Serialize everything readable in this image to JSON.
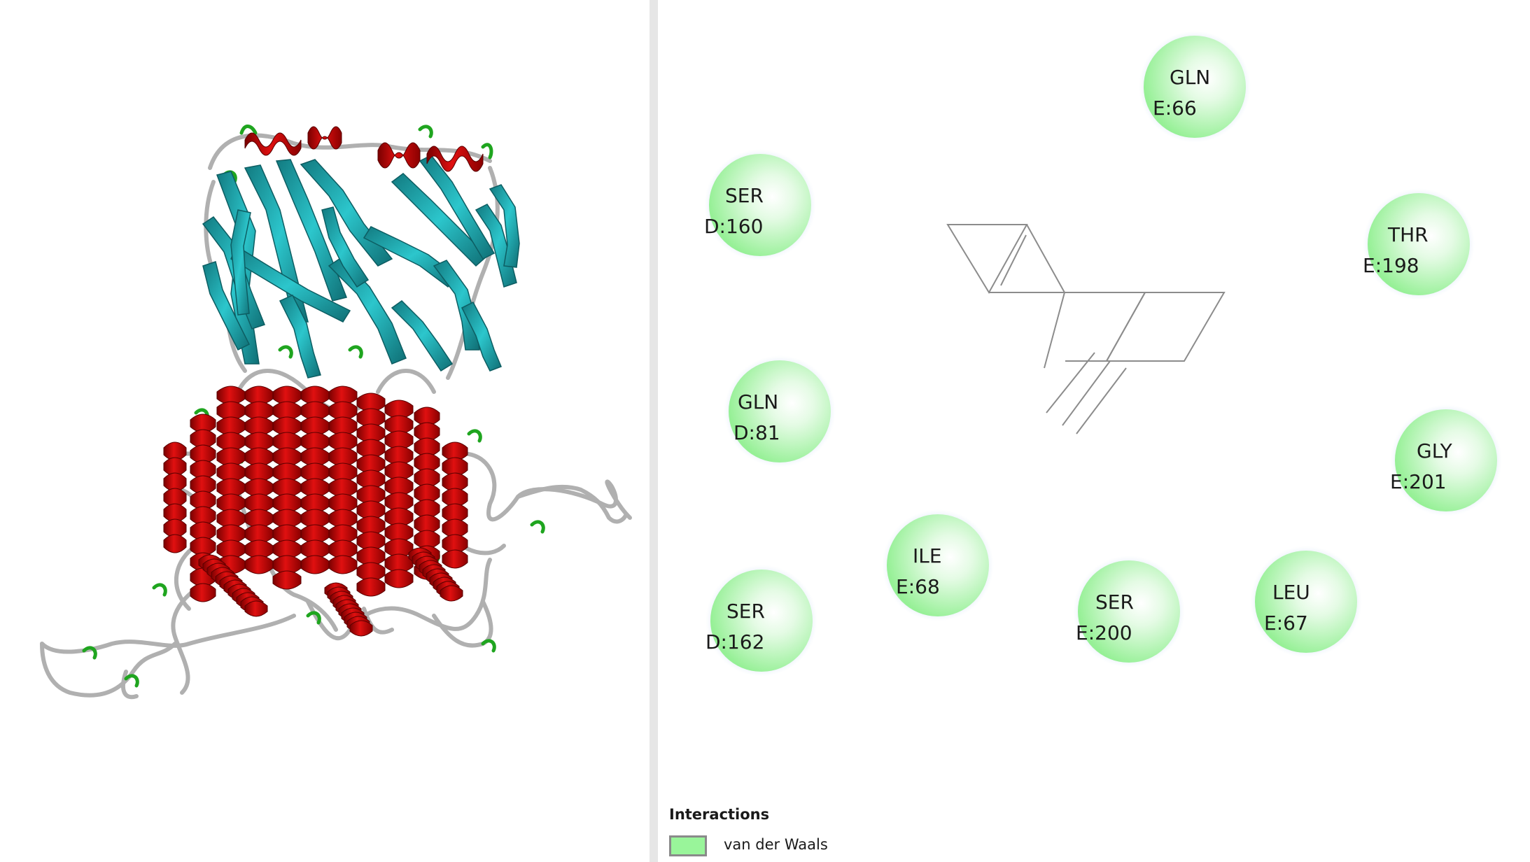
{
  "colors": {
    "helix": "#c00000",
    "sheet": "#23b8c0",
    "coil": "#a8a8a8",
    "turn": "#1fa51f",
    "vdw_fill": "#99f59a",
    "vdw_border": "#8a8a8a",
    "ligand_line": "#8c8c8c"
  },
  "residues": [
    {
      "name": "GLN",
      "id": "E:66"
    },
    {
      "name": "SER",
      "id": "D:160"
    },
    {
      "name": "THR",
      "id": "E:198"
    },
    {
      "name": "GLN",
      "id": "D:81"
    },
    {
      "name": "GLY",
      "id": "E:201"
    },
    {
      "name": "ILE",
      "id": "E:68"
    },
    {
      "name": "SER",
      "id": "D:162"
    },
    {
      "name": "SER",
      "id": "E:200"
    },
    {
      "name": "LEU",
      "id": "E:67"
    }
  ],
  "legend": {
    "title": "Interactions",
    "items": [
      {
        "label": "van der Waals",
        "color": "#99f59a"
      }
    ]
  }
}
